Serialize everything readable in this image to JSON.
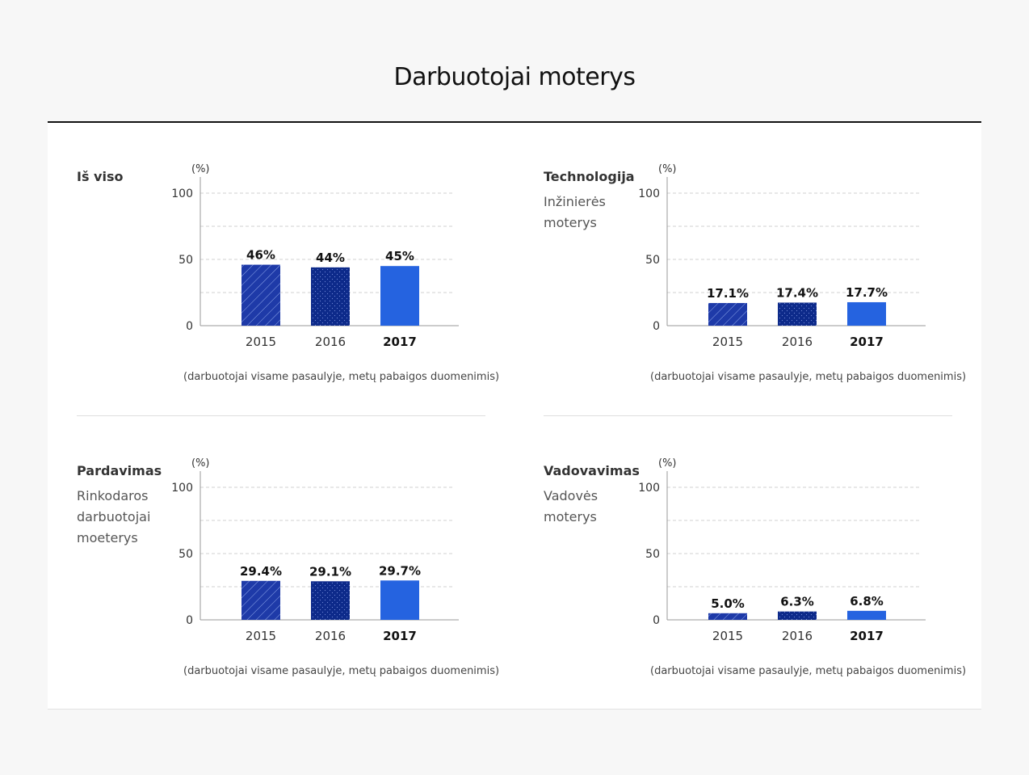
{
  "page_title": "Darbuotojai moterys",
  "colors": {
    "y2015": "#1e3aa8",
    "y2016": "#0d2a8a",
    "y2017": "#2563e0",
    "grid": "#d0d0d0",
    "axis": "#999999"
  },
  "chart_data": [
    {
      "type": "bar",
      "title": "Iš viso",
      "subtitle": "",
      "unit": "(%)",
      "categories": [
        "2015",
        "2016",
        "2017"
      ],
      "values": [
        46,
        44,
        45
      ],
      "value_labels": [
        "46%",
        "44%",
        "45%"
      ],
      "ylim": [
        0,
        100
      ],
      "yticks": [
        "0",
        "50",
        "100"
      ],
      "note": "(darbuotojai visame pasaulyje, metų pabaigos duomenimis)"
    },
    {
      "type": "bar",
      "title": "Technologija",
      "subtitle": "Inžinierės moterys",
      "unit": "(%)",
      "categories": [
        "2015",
        "2016",
        "2017"
      ],
      "values": [
        17.1,
        17.4,
        17.7
      ],
      "value_labels": [
        "17.1%",
        "17.4%",
        "17.7%"
      ],
      "ylim": [
        0,
        100
      ],
      "yticks": [
        "0",
        "50",
        "100"
      ],
      "note": "(darbuotojai visame pasaulyje, metų pabaigos duomenimis)"
    },
    {
      "type": "bar",
      "title": "Pardavimas",
      "subtitle": "Rinkodaros darbuotojai moeterys",
      "unit": "(%)",
      "categories": [
        "2015",
        "2016",
        "2017"
      ],
      "values": [
        29.4,
        29.1,
        29.7
      ],
      "value_labels": [
        "29.4%",
        "29.1%",
        "29.7%"
      ],
      "ylim": [
        0,
        100
      ],
      "yticks": [
        "0",
        "50",
        "100"
      ],
      "note": "(darbuotojai visame pasaulyje, metų pabaigos duomenimis)"
    },
    {
      "type": "bar",
      "title": "Vadovavimas",
      "subtitle": "Vadovės moterys",
      "unit": "(%)",
      "categories": [
        "2015",
        "2016",
        "2017"
      ],
      "values": [
        5.0,
        6.3,
        6.8
      ],
      "value_labels": [
        "5.0%",
        "6.3%",
        "6.8%"
      ],
      "ylim": [
        0,
        100
      ],
      "yticks": [
        "0",
        "50",
        "100"
      ],
      "note": "(darbuotojai visame pasaulyje, metų pabaigos duomenimis)"
    }
  ]
}
